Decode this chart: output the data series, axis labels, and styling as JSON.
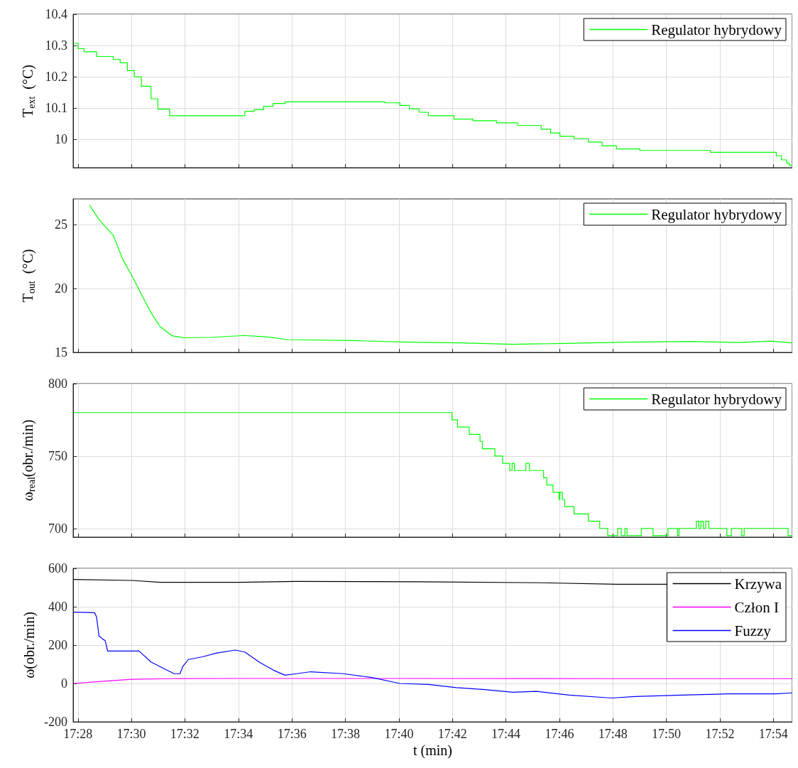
{
  "chart_data": [
    {
      "type": "step",
      "ylabel": "T$_{ext}$  (°C)",
      "xlim": [
        17.4637,
        17.9118
      ],
      "xticks": [
        {
          "value": 17.4667,
          "label": null
        },
        {
          "value": 17.5,
          "label": null
        },
        {
          "value": 17.5333,
          "label": null
        },
        {
          "value": 17.5667,
          "label": null
        },
        {
          "value": 17.6,
          "label": null
        },
        {
          "value": 17.6333,
          "label": null
        },
        {
          "value": 17.6667,
          "label": null
        },
        {
          "value": 17.7,
          "label": null
        },
        {
          "value": 17.7333,
          "label": null
        },
        {
          "value": 17.7667,
          "label": null
        },
        {
          "value": 17.8,
          "label": null
        },
        {
          "value": 17.8333,
          "label": null
        },
        {
          "value": 17.8667,
          "label": null
        },
        {
          "value": 17.9,
          "label": null
        }
      ],
      "ylim": [
        9.91,
        10.4
      ],
      "yticks": [
        10,
        10.1,
        10.2,
        10.3,
        10.4
      ],
      "tick_labels": "y",
      "grid": true,
      "legend": "top right",
      "series": [
        {
          "name": "Regulator hybrydowy",
          "color": "#00ff00",
          "x": [
            17.4642,
            17.4667,
            17.4705,
            17.4783,
            17.4887,
            17.493,
            17.4975,
            17.5018,
            17.5062,
            17.5122,
            17.5165,
            17.5238,
            17.5707,
            17.5765,
            17.5823,
            17.5883,
            17.5957,
            17.658,
            17.6673,
            17.6732,
            17.6792,
            17.685,
            17.701,
            17.7128,
            17.7275,
            17.7407,
            17.7553,
            17.7612,
            17.767,
            17.7758,
            17.7847,
            17.7933,
            17.8022,
            17.8168,
            17.8608,
            17.9018,
            17.905,
            17.9083,
            17.91,
            17.9117
          ],
          "values": [
            10.307,
            10.29,
            10.28,
            10.265,
            10.256,
            10.245,
            10.22,
            10.2,
            10.17,
            10.13,
            10.097,
            10.076,
            10.09,
            10.095,
            10.106,
            10.115,
            10.12,
            10.117,
            10.109,
            10.098,
            10.087,
            10.076,
            10.065,
            10.06,
            10.053,
            10.045,
            10.033,
            10.021,
            10.01,
            10.003,
            9.992,
            9.98,
            9.97,
            9.965,
            9.959,
            9.948,
            9.935,
            9.924,
            9.917,
            9.917
          ]
        }
      ]
    },
    {
      "type": "line",
      "ylabel": "T$_{out}$  (°C)",
      "xlim": [
        17.4637,
        17.9118
      ],
      "xticks": [
        {
          "value": 17.4667,
          "label": null
        },
        {
          "value": 17.5,
          "label": null
        },
        {
          "value": 17.5333,
          "label": null
        },
        {
          "value": 17.5667,
          "label": null
        },
        {
          "value": 17.6,
          "label": null
        },
        {
          "value": 17.6333,
          "label": null
        },
        {
          "value": 17.6667,
          "label": null
        },
        {
          "value": 17.7,
          "label": null
        },
        {
          "value": 17.7333,
          "label": null
        },
        {
          "value": 17.7667,
          "label": null
        },
        {
          "value": 17.8,
          "label": null
        },
        {
          "value": 17.8333,
          "label": null
        },
        {
          "value": 17.8667,
          "label": null
        },
        {
          "value": 17.9,
          "label": null
        }
      ],
      "ylim": [
        15,
        27
      ],
      "yticks": [
        15,
        20,
        25
      ],
      "tick_labels": "y",
      "grid": true,
      "legend": "top right",
      "series": [
        {
          "name": "Regulator hybrydowy",
          "color": "#00ff00",
          "x": [
            17.474,
            17.4798,
            17.4887,
            17.4945,
            17.5003,
            17.5062,
            17.5122,
            17.518,
            17.5253,
            17.5327,
            17.5502,
            17.5707,
            17.5853,
            17.597,
            17.638,
            17.6732,
            17.7055,
            17.7377,
            17.77,
            17.808,
            17.849,
            17.8783,
            17.8988,
            17.9117
          ],
          "values": [
            26.5,
            25.4,
            24.15,
            22.3,
            21.0,
            19.56,
            18.1,
            17.0,
            16.3,
            16.14,
            16.18,
            16.32,
            16.2,
            16.0,
            15.92,
            15.8,
            15.74,
            15.63,
            15.7,
            15.8,
            15.85,
            15.77,
            15.88,
            15.74
          ]
        }
      ]
    },
    {
      "type": "step",
      "ylabel": "ω$_{real}$(obr./min)",
      "xlim": [
        17.4637,
        17.9118
      ],
      "xticks": [
        {
          "value": 17.4667,
          "label": null
        },
        {
          "value": 17.5,
          "label": null
        },
        {
          "value": 17.5333,
          "label": null
        },
        {
          "value": 17.5667,
          "label": null
        },
        {
          "value": 17.6,
          "label": null
        },
        {
          "value": 17.6333,
          "label": null
        },
        {
          "value": 17.6667,
          "label": null
        },
        {
          "value": 17.7,
          "label": null
        },
        {
          "value": 17.7333,
          "label": null
        },
        {
          "value": 17.7667,
          "label": null
        },
        {
          "value": 17.8,
          "label": null
        },
        {
          "value": 17.8333,
          "label": null
        },
        {
          "value": 17.8667,
          "label": null
        },
        {
          "value": 17.9,
          "label": null
        }
      ],
      "ylim": [
        694,
        800
      ],
      "yticks": [
        700,
        750,
        800
      ],
      "tick_labels": "y",
      "grid": true,
      "legend": "top right",
      "series": [
        {
          "name": "Regulator hybrydowy",
          "color": "#00ff00",
          "x": [
            17.4642,
            17.6997,
            17.7032,
            17.7105,
            17.7172,
            17.7187,
            17.7265,
            17.7313,
            17.7357,
            17.7372,
            17.7387,
            17.7458,
            17.748,
            17.7568,
            17.7588,
            17.7627,
            17.7665,
            17.767,
            17.7685,
            17.77,
            17.7758,
            17.7847,
            17.7918,
            17.7968,
            17.803,
            17.8052,
            17.8075,
            17.8088,
            17.8177,
            17.825,
            17.8343,
            17.8403,
            17.8412,
            17.852,
            17.8535,
            17.8548,
            17.8563,
            17.8578,
            17.8598,
            17.871,
            17.8738,
            17.8803,
            17.8818,
            17.9092,
            17.9117
          ],
          "values": [
            780,
            775,
            770,
            765,
            760,
            755,
            750,
            745,
            740,
            745,
            740,
            745,
            740,
            735,
            730,
            725,
            720,
            725,
            720,
            715,
            710,
            705,
            700,
            695,
            700,
            695,
            700,
            695,
            700,
            695,
            700,
            695,
            700,
            705,
            700,
            705,
            700,
            705,
            700,
            695,
            700,
            695,
            700,
            695,
            695
          ]
        }
      ]
    },
    {
      "type": "line",
      "xlabel": "t (min)",
      "ylabel": "ω(obr./min)",
      "xlim": [
        17.4637,
        17.9118
      ],
      "xticks": [
        {
          "value": 17.4667,
          "label": "17:28"
        },
        {
          "value": 17.5,
          "label": "17:30"
        },
        {
          "value": 17.5333,
          "label": "17:32"
        },
        {
          "value": 17.5667,
          "label": "17:34"
        },
        {
          "value": 17.6,
          "label": "17:36"
        },
        {
          "value": 17.6333,
          "label": "17:38"
        },
        {
          "value": 17.6667,
          "label": "17:40"
        },
        {
          "value": 17.7,
          "label": "17:42"
        },
        {
          "value": 17.7333,
          "label": "17:44"
        },
        {
          "value": 17.7667,
          "label": "17:46"
        },
        {
          "value": 17.8,
          "label": "17:48"
        },
        {
          "value": 17.8333,
          "label": "17:50"
        },
        {
          "value": 17.8667,
          "label": "17:52"
        },
        {
          "value": 17.9,
          "label": "17:54"
        }
      ],
      "ylim": [
        -200,
        600
      ],
      "yticks": [
        -200,
        0,
        200,
        400,
        600
      ],
      "grid": true,
      "legend": "top right",
      "series": [
        {
          "name": "Krzywa",
          "color": "#000000",
          "x": [
            17.4642,
            17.5003,
            17.518,
            17.5678,
            17.603,
            17.6792,
            17.7553,
            17.8022,
            17.8432
          ],
          "values": [
            542,
            537,
            527,
            527,
            532,
            530,
            525,
            517,
            517
          ]
        },
        {
          "name": "Człon I",
          "color": "#ff00ff",
          "x": [
            17.4642,
            17.4798,
            17.5003,
            17.525,
            17.5678,
            17.6673,
            17.8022,
            17.9117
          ],
          "values": [
            0,
            10,
            22,
            25,
            26,
            26,
            25,
            25
          ]
        },
        {
          "name": "Fuzzy",
          "color": "#0000ff",
          "x": [
            17.4642,
            17.477,
            17.4783,
            17.4798,
            17.4822,
            17.4837,
            17.4852,
            17.5048,
            17.5122,
            17.5208,
            17.5267,
            17.5303,
            17.532,
            17.5355,
            17.5443,
            17.5532,
            17.5648,
            17.5707,
            17.5795,
            17.5883,
            17.5957,
            17.603,
            17.6117,
            17.6322,
            17.6498,
            17.6673,
            17.685,
            17.7025,
            17.7202,
            17.7377,
            17.7523,
            17.7728,
            17.7992,
            17.8138,
            17.8432,
            17.8725,
            17.9018,
            17.9117
          ],
          "values": [
            372,
            369,
            347,
            248,
            231,
            223,
            169,
            169,
            112,
            75,
            51,
            51,
            88,
            125,
            139,
            159,
            174,
            164,
            112,
            70,
            43,
            51,
            61,
            51,
            31,
            0,
            -5,
            -22,
            -32,
            -46,
            -41,
            -61,
            -76,
            -68,
            -61,
            -54,
            -54,
            -49
          ]
        }
      ]
    }
  ]
}
